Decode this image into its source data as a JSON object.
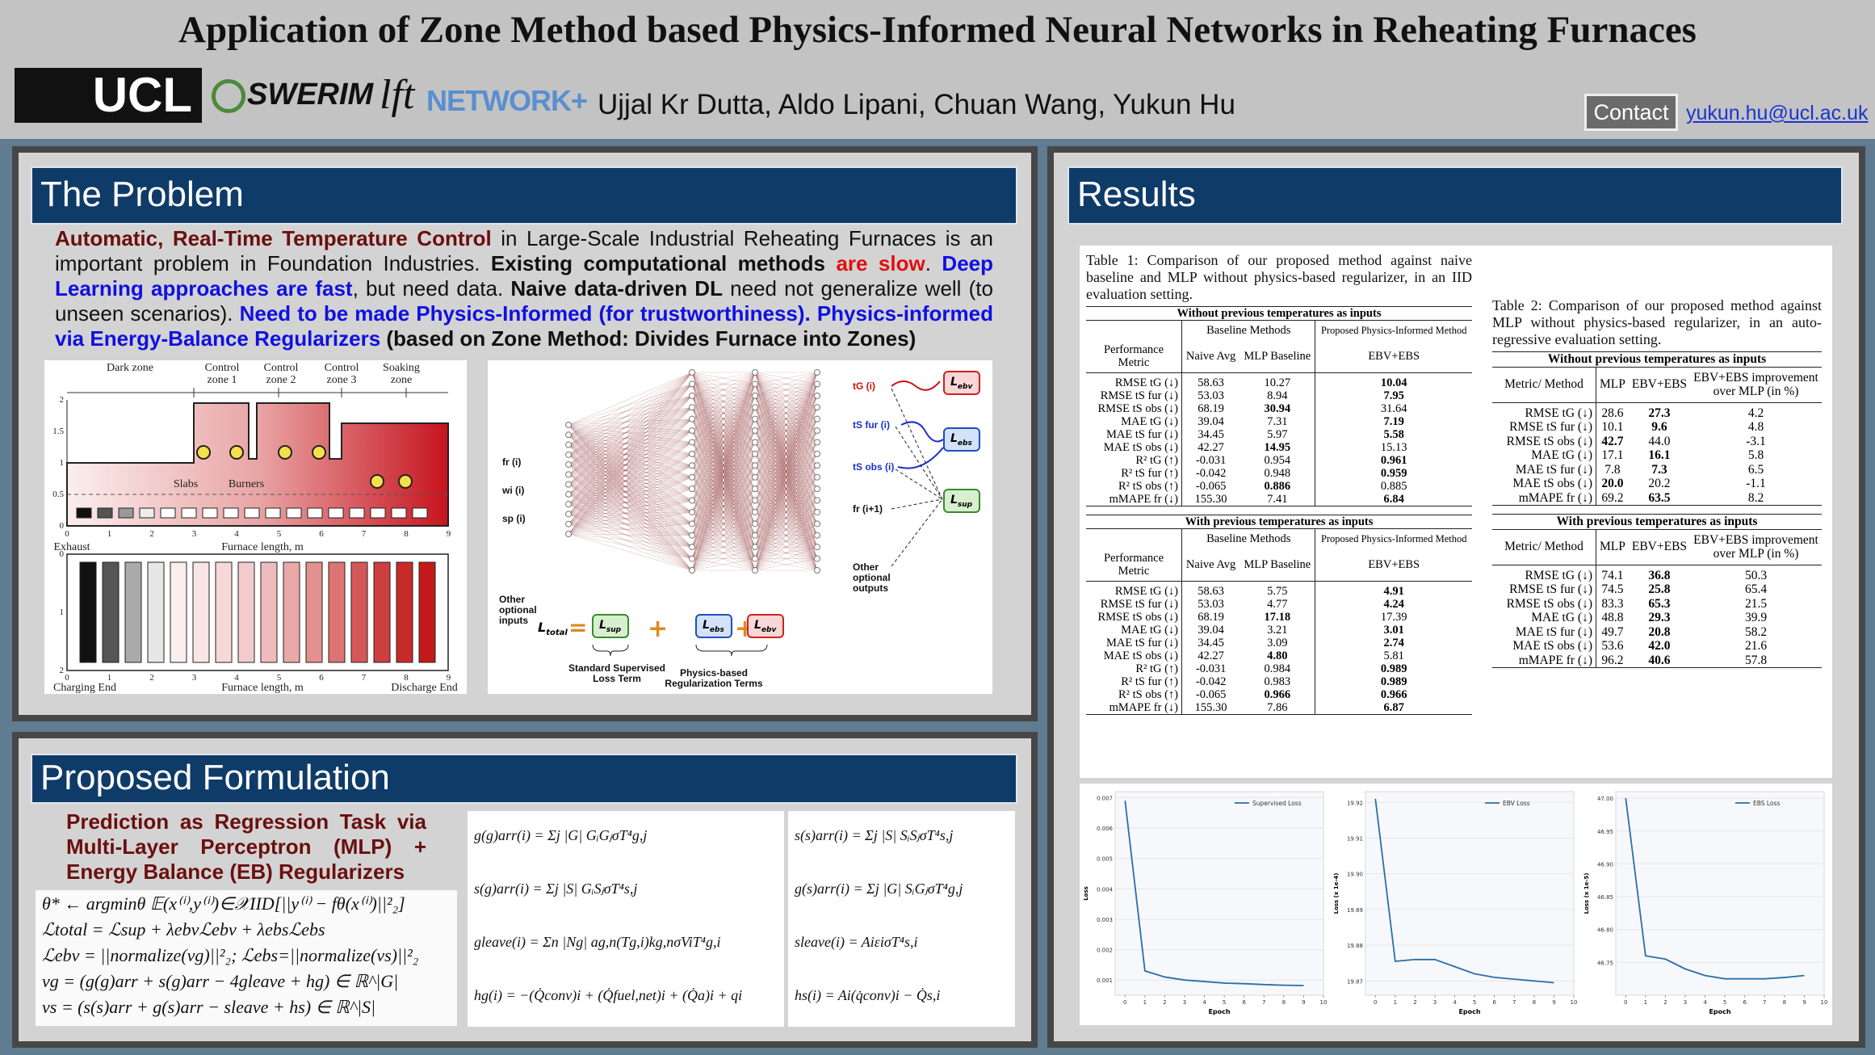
{
  "header": {
    "title": "Application of Zone Method based Physics-Informed Neural Networks in Reheating Furnaces",
    "logos": [
      "UCL",
      "SWERIM",
      "lft",
      "NETWORK+"
    ],
    "authors": "Ujjal Kr Dutta, Aldo Lipani, Chuan Wang, Yukun Hu",
    "contact": "Contact",
    "email": "yukun.hu@ucl.ac.uk"
  },
  "problem": {
    "title": "The Problem",
    "segments": [
      {
        "text": "Automatic, Real-Time Temperature Control",
        "color": "#6b0f0f",
        "bold": true
      },
      {
        "text": " in Large-Scale Industrial Reheating Furnaces is an important problem in Foundation Industries. ",
        "color": "#111111",
        "bold": false
      },
      {
        "text": "Existing computational methods ",
        "color": "#111111",
        "bold": true
      },
      {
        "text": "are slow",
        "color": "#e01010",
        "bold": true
      },
      {
        "text": ". ",
        "color": "#111111",
        "bold": false
      },
      {
        "text": "Deep Learning approaches are fast",
        "color": "#1010e0",
        "bold": true
      },
      {
        "text": ", but need data. ",
        "color": "#111111",
        "bold": false
      },
      {
        "text": "Naive data-driven DL",
        "color": "#111111",
        "bold": true
      },
      {
        "text": " need not generalize well (to unseen scenarios). ",
        "color": "#111111",
        "bold": false
      },
      {
        "text": "Need to be made Physics-Informed (for trustworthiness). Physics-informed via Energy-Balance Regularizers",
        "color": "#1010e0",
        "bold": true
      },
      {
        "text": " (based on Zone Method: Divides Furnace into Zones)",
        "color": "#111111",
        "bold": true
      }
    ],
    "furnace": {
      "zones": [
        "Dark zone",
        "Control zone 1",
        "Control zone 2",
        "Control zone 3",
        "Soaking zone"
      ],
      "slabs": "Slabs",
      "burners": "Burners",
      "exhaust": "Exhaust",
      "x_label_top": "Furnace length, m",
      "x_label_bottom": "Furnace length, m",
      "charging": "Charging End",
      "discharge": "Discharge End",
      "x_ticks_top": [
        "0",
        "1",
        "2",
        "3",
        "4",
        "5",
        "6",
        "7",
        "8",
        "9"
      ],
      "x_ticks_bottom": [
        "0",
        "1",
        "2",
        "3",
        "4",
        "5",
        "6",
        "7",
        "8",
        "9"
      ],
      "y_ticks_top": [
        "0",
        "0.5",
        "1",
        "1.5",
        "2"
      ],
      "y_ticks_bottom": [
        "0",
        "1",
        "2"
      ]
    },
    "network": {
      "inputs": [
        "fr (i)",
        "wi (i)",
        "sp (i)"
      ],
      "other_inputs": "Other optional inputs",
      "outputs": [
        "tG (i)",
        "tS fur (i)",
        "tS obs (i)",
        "fr (i+1)"
      ],
      "other_outputs": "Other optional outputs",
      "loss_symbol": "L",
      "subs": {
        "ebv": "ebv",
        "ebs": "ebs",
        "sup": "sup",
        "total": "total"
      },
      "eq": "=",
      "plus": "+",
      "supervised_term": "Standard Supervised Loss Term",
      "regularization_terms": "Physics-based Regularization Terms"
    }
  },
  "formulation": {
    "title": "Proposed Formulation",
    "summary": "Prediction as Regression Task via Multi-Layer Perceptron (MLP) + Energy Balance (EB) Regularizers",
    "equations": [
      "θ* ← argminθ 𝔼(x⁽ⁱ⁾,y⁽ⁱ⁾)∈𝒳IID[||y⁽ⁱ⁾ − fθ(x⁽ⁱ⁾)||²₂]",
      "ℒtotal = ℒsup + λebvℒebv + λebsℒebs",
      "ℒebv = ||normalize(vg)||²₂; ℒebs=||normalize(vs)||²₂",
      "vg = (g(g)arr + s(g)arr − 4gleave + hg) ∈ ℝ^|G|",
      "vs = (s(s)arr + g(s)arr − sleave + hs) ∈ ℝ^|S|"
    ],
    "eq_middle": [
      "g(g)arr(i) = Σj |G| GᵢGⱼσT⁴g,j",
      "s(g)arr(i) = Σj |S| GᵢSⱼσT⁴s,j",
      "gleave(i) = Σn |Ng| ag,n(Tg,i)kg,nσViT⁴g,i",
      "hg(i) = −(Q̇conv)i + (Q̇fuel,net)i + (Q̇a)i + qi"
    ],
    "eq_right": [
      "s(s)arr(i) = Σj |S| SᵢSⱼσT⁴s,j",
      "g(s)arr(i) = Σj |G| SᵢGⱼσT⁴g,j",
      "sleave(i) = AiεiσT⁴s,i",
      "hs(i) = Ai(q̇conv)i − Q̇s,i"
    ]
  },
  "results": {
    "title": "Results",
    "table1": {
      "caption": "Table 1: Comparison of our proposed method against naive baseline and MLP without physics-based regularizer, in an IID evaluation setting.",
      "sections": [
        {
          "title": "Without previous temperatures as inputs",
          "groups": [
            "Baseline Methods",
            "Proposed Physics-Informed Method"
          ],
          "columns": [
            "Performance Metric",
            "Naive Avg",
            "MLP Baseline",
            "EBV+EBS"
          ],
          "rows": [
            [
              "RMSE tG (↓)",
              "58.63",
              "10.27",
              "10.04"
            ],
            [
              "RMSE tS fur (↓)",
              "53.03",
              "8.94",
              "7.95"
            ],
            [
              "RMSE tS obs (↓)",
              "68.19",
              "30.94",
              "31.64"
            ],
            [
              "MAE tG (↓)",
              "39.04",
              "7.31",
              "7.19"
            ],
            [
              "MAE tS fur (↓)",
              "34.45",
              "5.97",
              "5.58"
            ],
            [
              "MAE tS obs (↓)",
              "42.27",
              "14.95",
              "15.13"
            ],
            [
              "R² tG (↑)",
              "-0.031",
              "0.954",
              "0.961"
            ],
            [
              "R² tS fur (↑)",
              "-0.042",
              "0.948",
              "0.959"
            ],
            [
              "R² tS obs (↑)",
              "-0.065",
              "0.886",
              "0.885"
            ],
            [
              "mMAPE fr (↓)",
              "155.30",
              "7.41",
              "6.84"
            ]
          ],
          "bold": [
            [
              0,
              3
            ],
            [
              1,
              3
            ],
            [
              2,
              2
            ],
            [
              3,
              3
            ],
            [
              4,
              3
            ],
            [
              5,
              2
            ],
            [
              6,
              3
            ],
            [
              7,
              3
            ],
            [
              8,
              2
            ],
            [
              9,
              3
            ]
          ]
        },
        {
          "title": "With previous temperatures as inputs",
          "groups": [
            "Baseline Methods",
            "Proposed Physics-Informed Method"
          ],
          "columns": [
            "Performance Metric",
            "Naive Avg",
            "MLP Baseline",
            "EBV+EBS"
          ],
          "rows": [
            [
              "RMSE tG (↓)",
              "58.63",
              "5.75",
              "4.91"
            ],
            [
              "RMSE tS fur (↓)",
              "53.03",
              "4.77",
              "4.24"
            ],
            [
              "RMSE tS obs (↓)",
              "68.19",
              "17.18",
              "17.39"
            ],
            [
              "MAE tG (↓)",
              "39.04",
              "3.21",
              "3.01"
            ],
            [
              "MAE tS fur (↓)",
              "34.45",
              "3.09",
              "2.74"
            ],
            [
              "MAE tS obs (↓)",
              "42.27",
              "4.80",
              "5.81"
            ],
            [
              "R² tG (↑)",
              "-0.031",
              "0.984",
              "0.989"
            ],
            [
              "R² tS fur (↑)",
              "-0.042",
              "0.983",
              "0.989"
            ],
            [
              "R² tS obs (↑)",
              "-0.065",
              "0.966",
              "0.966"
            ],
            [
              "mMAPE fr (↓)",
              "155.30",
              "7.86",
              "6.87"
            ]
          ],
          "bold": [
            [
              0,
              3
            ],
            [
              1,
              3
            ],
            [
              2,
              2
            ],
            [
              3,
              3
            ],
            [
              4,
              3
            ],
            [
              5,
              2
            ],
            [
              6,
              3
            ],
            [
              7,
              3
            ],
            [
              8,
              2
            ],
            [
              8,
              3
            ],
            [
              9,
              3
            ]
          ]
        }
      ]
    },
    "table2": {
      "caption": "Table 2: Comparison of our proposed method against MLP without physics-based regularizer, in an auto-regressive evaluation setting.",
      "sections": [
        {
          "title": "Without previous temperatures as inputs",
          "columns": [
            "Metric/ Method",
            "MLP",
            "EBV+EBS",
            "EBV+EBS improvement over MLP (in %)"
          ],
          "rows": [
            [
              "RMSE tG (↓)",
              "28.6",
              "27.3",
              "4.2"
            ],
            [
              "RMSE tS fur (↓)",
              "10.1",
              "9.6",
              "4.8"
            ],
            [
              "RMSE tS obs (↓)",
              "42.7",
              "44.0",
              "-3.1"
            ],
            [
              "MAE tG (↓)",
              "17.1",
              "16.1",
              "5.8"
            ],
            [
              "MAE tS fur (↓)",
              "7.8",
              "7.3",
              "6.5"
            ],
            [
              "MAE tS obs (↓)",
              "20.0",
              "20.2",
              "-1.1"
            ],
            [
              "mMAPE fr (↓)",
              "69.2",
              "63.5",
              "8.2"
            ]
          ],
          "bold": [
            [
              0,
              2
            ],
            [
              1,
              2
            ],
            [
              2,
              1
            ],
            [
              3,
              2
            ],
            [
              4,
              2
            ],
            [
              5,
              1
            ],
            [
              6,
              2
            ]
          ]
        },
        {
          "title": "With previous temperatures as inputs",
          "columns": [
            "Metric/ Method",
            "MLP",
            "EBV+EBS",
            "EBV+EBS improvement over MLP (in %)"
          ],
          "rows": [
            [
              "RMSE tG (↓)",
              "74.1",
              "36.8",
              "50.3"
            ],
            [
              "RMSE tS fur (↓)",
              "74.5",
              "25.8",
              "65.4"
            ],
            [
              "RMSE tS obs (↓)",
              "83.3",
              "65.3",
              "21.5"
            ],
            [
              "MAE tG (↓)",
              "48.8",
              "29.3",
              "39.9"
            ],
            [
              "MAE tS fur (↓)",
              "49.7",
              "20.8",
              "58.2"
            ],
            [
              "MAE tS obs (↓)",
              "53.6",
              "42.0",
              "21.6"
            ],
            [
              "mMAPE fr (↓)",
              "96.2",
              "40.6",
              "57.8"
            ]
          ],
          "bold": [
            [
              0,
              2
            ],
            [
              1,
              2
            ],
            [
              2,
              2
            ],
            [
              3,
              2
            ],
            [
              4,
              2
            ],
            [
              5,
              2
            ],
            [
              6,
              2
            ]
          ]
        }
      ]
    }
  },
  "chart_data": [
    {
      "type": "line",
      "xlabel": "Epoch",
      "ylabel": "Loss",
      "x": [
        0,
        1,
        2,
        3,
        4,
        5,
        6,
        7,
        8,
        9
      ],
      "series": [
        {
          "name": "Supervised Loss",
          "color": "#2a6fa8",
          "values": [
            0.0069,
            0.0013,
            0.0011,
            0.001,
            0.00095,
            0.0009,
            0.00088,
            0.00085,
            0.00083,
            0.00082
          ]
        }
      ],
      "xlim": [
        -0.5,
        10
      ],
      "ylim": [
        0.0005,
        0.0072
      ],
      "xticks": [
        0,
        1,
        2,
        3,
        4,
        5,
        6,
        7,
        8,
        9,
        10
      ],
      "yticks": [
        0.001,
        0.002,
        0.003,
        0.004,
        0.005,
        0.006,
        0.007
      ],
      "legend": "upper right"
    },
    {
      "type": "line",
      "xlabel": "Epoch",
      "ylabel": "Loss (x 1e-4)",
      "x": [
        0,
        1,
        2,
        3,
        4,
        5,
        6,
        7,
        8,
        9
      ],
      "series": [
        {
          "name": "EBV Loss",
          "color": "#2a6fa8",
          "values": [
            19.921,
            19.8755,
            19.876,
            19.876,
            19.874,
            19.872,
            19.871,
            19.8705,
            19.87,
            19.8695
          ]
        }
      ],
      "xlim": [
        -0.5,
        10
      ],
      "ylim": [
        19.866,
        19.923
      ],
      "xticks": [
        0,
        1,
        2,
        3,
        4,
        5,
        6,
        7,
        8,
        9,
        10
      ],
      "yticks": [
        19.87,
        19.88,
        19.89,
        {
          "value": 19.9,
          "label": "19.90"
        },
        19.91,
        19.92
      ],
      "legend": "upper right"
    },
    {
      "type": "line",
      "xlabel": "Epoch",
      "ylabel": "Loss (x 1e-5)",
      "x": [
        0,
        1,
        2,
        3,
        4,
        5,
        6,
        7,
        8,
        9
      ],
      "series": [
        {
          "name": "EBS Loss",
          "color": "#2a6fa8",
          "values": [
            47.0,
            46.76,
            46.755,
            46.74,
            46.73,
            46.725,
            46.725,
            46.725,
            46.727,
            46.73
          ]
        }
      ],
      "xlim": [
        -0.5,
        10
      ],
      "ylim": [
        46.7,
        47.01
      ],
      "xticks": [
        0,
        1,
        2,
        3,
        4,
        5,
        6,
        7,
        8,
        9,
        10
      ],
      "yticks": [
        46.75,
        {
          "value": 46.8,
          "label": "46.80"
        },
        46.85,
        {
          "value": 46.9,
          "label": "46.90"
        },
        46.95,
        {
          "value": 47,
          "label": "47.00"
        }
      ],
      "legend": "upper right"
    }
  ]
}
